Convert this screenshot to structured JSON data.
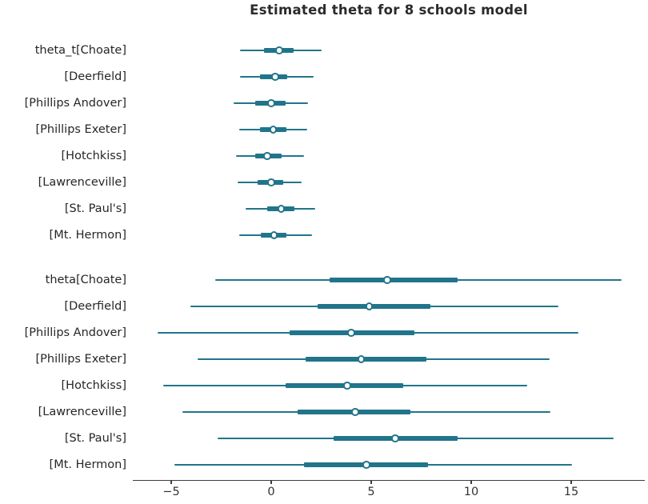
{
  "chart_data": {
    "type": "forest",
    "title": "Estimated theta for 8 schools model",
    "xlabel": "",
    "ylabel": "",
    "x_ticks": [
      -5,
      0,
      5,
      10,
      15
    ],
    "xlim": [
      -6.92,
      18.68
    ],
    "grid": false,
    "legend_position": "none",
    "marker_style": "open-circle",
    "interval_meaning": "thin line = wide credible interval, thick line = interquartile range, dot = point estimate",
    "colors": {
      "interval": "#21758b",
      "median_ring": "#21758b",
      "median_fill": "#ffffff",
      "axis": "#3d3d3d",
      "tick_text": "#333333",
      "label_text": "#262626",
      "title_text": "#2b2b2b"
    },
    "groups": [
      {
        "variable": "theta_t",
        "rows": [
          {
            "label": "theta_t[Choate]",
            "school": "Choate",
            "ci_lo": -1.55,
            "q1": -0.35,
            "median": 0.4,
            "q3": 1.1,
            "ci_hi": 2.5
          },
          {
            "label": "[Deerfield]",
            "school": "Deerfield",
            "ci_lo": -1.55,
            "q1": -0.55,
            "median": 0.2,
            "q3": 0.8,
            "ci_hi": 2.1
          },
          {
            "label": "[Phillips Andover]",
            "school": "Phillips Andover",
            "ci_lo": -1.9,
            "q1": -0.8,
            "median": 0.0,
            "q3": 0.7,
            "ci_hi": 1.85
          },
          {
            "label": "[Phillips Exeter]",
            "school": "Phillips Exeter",
            "ci_lo": -1.6,
            "q1": -0.55,
            "median": 0.1,
            "q3": 0.75,
            "ci_hi": 1.8
          },
          {
            "label": "[Hotchkiss]",
            "school": "Hotchkiss",
            "ci_lo": -1.75,
            "q1": -0.8,
            "median": -0.2,
            "q3": 0.5,
            "ci_hi": 1.65
          },
          {
            "label": "[Lawrenceville]",
            "school": "Lawrenceville",
            "ci_lo": -1.7,
            "q1": -0.7,
            "median": 0.0,
            "q3": 0.6,
            "ci_hi": 1.5
          },
          {
            "label": "[St. Paul's]",
            "school": "St. Paul's",
            "ci_lo": -1.3,
            "q1": -0.22,
            "median": 0.5,
            "q3": 1.15,
            "ci_hi": 2.2
          },
          {
            "label": "[Mt. Hermon]",
            "school": "Mt. Hermon",
            "ci_lo": -1.6,
            "q1": -0.52,
            "median": 0.13,
            "q3": 0.76,
            "ci_hi": 2.04
          }
        ]
      },
      {
        "variable": "theta",
        "rows": [
          {
            "label": "theta[Choate]",
            "school": "Choate",
            "ci_lo": -2.8,
            "q1": 2.9,
            "median": 5.8,
            "q3": 9.3,
            "ci_hi": 17.5
          },
          {
            "label": "[Deerfield]",
            "school": "Deerfield",
            "ci_lo": -4.05,
            "q1": 2.3,
            "median": 4.9,
            "q3": 7.95,
            "ci_hi": 14.35
          },
          {
            "label": "[Phillips Andover]",
            "school": "Phillips Andover",
            "ci_lo": -5.7,
            "q1": 0.9,
            "median": 4.0,
            "q3": 7.15,
            "ci_hi": 15.35
          },
          {
            "label": "[Phillips Exeter]",
            "school": "Phillips Exeter",
            "ci_lo": -3.7,
            "q1": 1.7,
            "median": 4.5,
            "q3": 7.75,
            "ci_hi": 13.9
          },
          {
            "label": "[Hotchkiss]",
            "school": "Hotchkiss",
            "ci_lo": -5.4,
            "q1": 0.7,
            "median": 3.8,
            "q3": 6.6,
            "ci_hi": 12.8
          },
          {
            "label": "[Lawrenceville]",
            "school": "Lawrenceville",
            "ci_lo": -4.45,
            "q1": 1.3,
            "median": 4.2,
            "q3": 6.95,
            "ci_hi": 13.95
          },
          {
            "label": "[St. Paul's]",
            "school": "St. Paul's",
            "ci_lo": -2.7,
            "q1": 3.1,
            "median": 6.2,
            "q3": 9.3,
            "ci_hi": 17.1
          },
          {
            "label": "[Mt. Hermon]",
            "school": "Mt. Hermon",
            "ci_lo": -4.85,
            "q1": 1.65,
            "median": 4.75,
            "q3": 7.85,
            "ci_hi": 15.05
          }
        ]
      }
    ]
  }
}
